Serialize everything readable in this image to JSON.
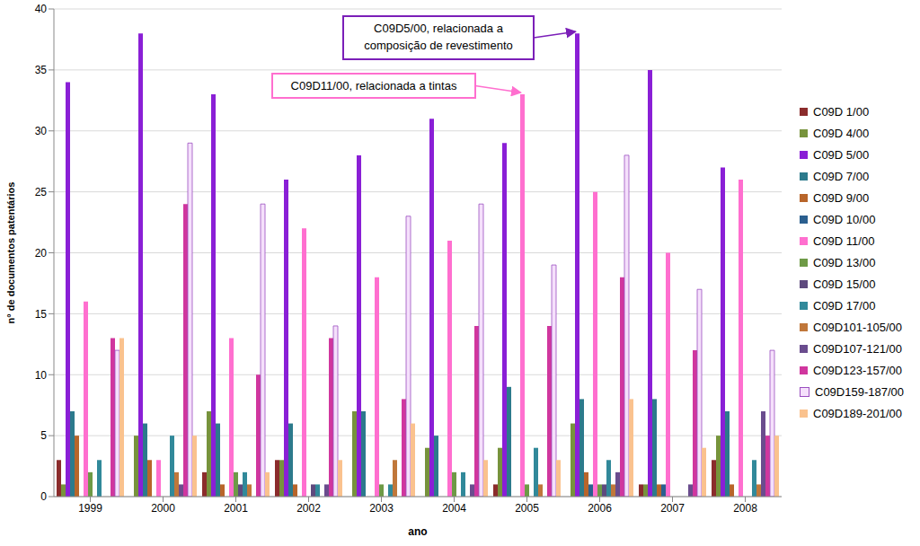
{
  "chart_data": {
    "type": "bar",
    "x_label": "ano",
    "y_label": "n° de documentos patentários",
    "categories": [
      "1999",
      "2000",
      "2001",
      "2002",
      "2003",
      "2004",
      "2005",
      "2006",
      "2007",
      "2008"
    ],
    "ylim": [
      0,
      40
    ],
    "yticks": [
      0,
      5,
      10,
      15,
      20,
      25,
      30,
      35,
      40
    ],
    "grid": true,
    "legend": "right",
    "series": [
      {
        "name": "C09D 1/00",
        "color": "#8B2C2C",
        "values": [
          3,
          0,
          2,
          3,
          0,
          0,
          1,
          0,
          1,
          3
        ]
      },
      {
        "name": "C09D 4/00",
        "color": "#77933C",
        "values": [
          1,
          5,
          7,
          3,
          7,
          4,
          4,
          6,
          1,
          5
        ]
      },
      {
        "name": "C09D 5/00",
        "color": "#8A1FD6",
        "values": [
          34,
          38,
          33,
          26,
          28,
          31,
          29,
          38,
          35,
          27
        ]
      },
      {
        "name": "C09D 7/00",
        "color": "#2C7A8C",
        "values": [
          7,
          6,
          6,
          6,
          7,
          5,
          9,
          8,
          8,
          7
        ]
      },
      {
        "name": "C09D 9/00",
        "color": "#B8652A",
        "values": [
          5,
          3,
          1,
          1,
          0,
          0,
          0,
          2,
          1,
          1
        ]
      },
      {
        "name": "C09D 10/00",
        "color": "#2B5F8F",
        "values": [
          0,
          0,
          0,
          0,
          0,
          0,
          0,
          1,
          1,
          0
        ]
      },
      {
        "name": "C09D 11/00",
        "color": "#FF6FCF",
        "values": [
          16,
          3,
          13,
          22,
          18,
          21,
          33,
          25,
          20,
          26
        ]
      },
      {
        "name": "C09D 13/00",
        "color": "#6E9A46",
        "values": [
          2,
          0,
          2,
          0,
          1,
          2,
          1,
          1,
          0,
          0
        ]
      },
      {
        "name": "C09D 15/00",
        "color": "#5E4A7E",
        "values": [
          0,
          0,
          1,
          1,
          0,
          0,
          0,
          1,
          0,
          0
        ]
      },
      {
        "name": "C09D 17/00",
        "color": "#31899A",
        "values": [
          3,
          5,
          2,
          1,
          1,
          2,
          4,
          3,
          0,
          3
        ]
      },
      {
        "name": "C09D101-105/00",
        "color": "#C0773A",
        "values": [
          0,
          2,
          1,
          0,
          3,
          0,
          1,
          1,
          0,
          1
        ]
      },
      {
        "name": "C09D107-121/00",
        "color": "#6A4C8E",
        "values": [
          0,
          1,
          0,
          1,
          0,
          1,
          0,
          2,
          1,
          7
        ]
      },
      {
        "name": "C09D123-157/00",
        "color": "#D0369E",
        "values": [
          13,
          24,
          10,
          13,
          8,
          14,
          14,
          18,
          12,
          5
        ]
      },
      {
        "name": "C09D159-187/00",
        "color": "#F5E0FB",
        "values": [
          12,
          29,
          24,
          14,
          23,
          24,
          19,
          28,
          17,
          12
        ]
      },
      {
        "name": "C09D189-201/00",
        "color": "#FAC28E",
        "values": [
          13,
          5,
          2,
          3,
          6,
          3,
          3,
          8,
          4,
          5
        ]
      }
    ],
    "annotations": [
      {
        "text": [
          "C09D5/00, relacionada a",
          "composição de revestimento"
        ],
        "series": "C09D 5/00",
        "category": "2006",
        "color": "#7B1FB8"
      },
      {
        "text": [
          "C09D11/00, relacionada a tintas"
        ],
        "series": "C09D 11/00",
        "category": "2005",
        "color": "#FF6FCF"
      }
    ]
  }
}
